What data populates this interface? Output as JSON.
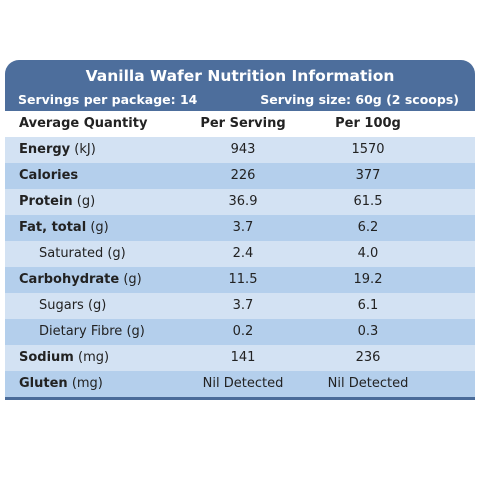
{
  "header": {
    "title": "Vanilla Wafer Nutrition Information",
    "servings": "Servings per package: 14",
    "serving_size": "Serving size: 60g (2 scoops)"
  },
  "table": {
    "columns": [
      "Average Quantity",
      "Per Serving",
      "Per 100g"
    ],
    "rows": [
      {
        "name": "Energy",
        "unit": "(kJ)",
        "per_serving": "943",
        "per_100g": "1570"
      },
      {
        "name": "Calories",
        "per_serving": "226",
        "per_100g": "377"
      },
      {
        "name": "Protein",
        "unit": "(g)",
        "per_serving": "36.9",
        "per_100g": "61.5"
      },
      {
        "name": "Fat, total",
        "unit": "(g)",
        "per_serving": "3.7",
        "per_100g": "6.2",
        "sub_rows": [
          {
            "name": "Saturated",
            "unit": "(g)",
            "per_serving": "2.4",
            "per_100g": "4.0"
          }
        ]
      },
      {
        "name": "Carbohydrate",
        "unit": "(g)",
        "per_serving": "11.5",
        "per_100g": "19.2",
        "sub_rows": [
          {
            "name": "Sugars",
            "unit": "(g)",
            "per_serving": "3.7",
            "per_100g": "6.1"
          },
          {
            "name": "Dietary Fibre",
            "unit": "(g)",
            "per_serving": "0.2",
            "per_100g": "0.3"
          }
        ]
      },
      {
        "name": "Sodium",
        "unit": "(mg)",
        "per_serving": "141",
        "per_100g": "236"
      },
      {
        "name": "Gluten",
        "unit": "(mg)",
        "per_serving": "Nil Detected",
        "per_100g": "Nil Detected"
      }
    ]
  }
}
